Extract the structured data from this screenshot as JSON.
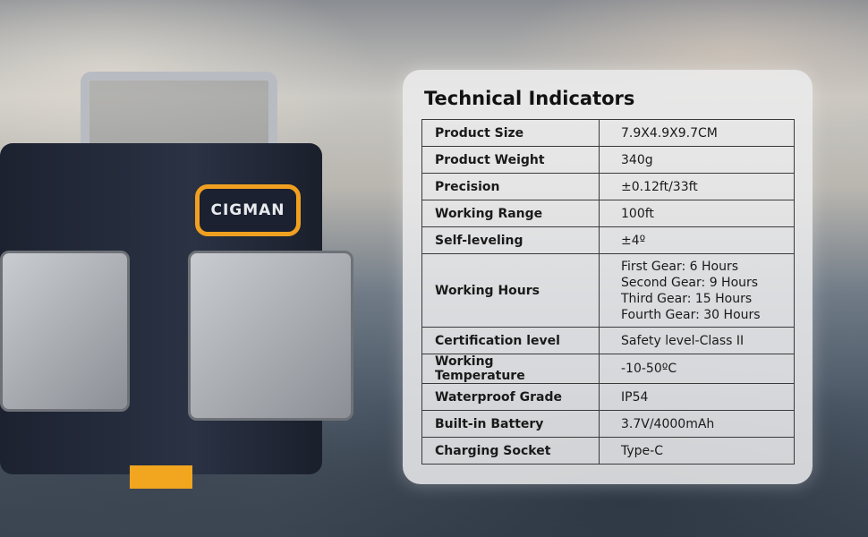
{
  "brand": {
    "logo_text": "CIGMAN",
    "accent": "#f2a51f"
  },
  "panel": {
    "title": "Technical Indicators"
  },
  "specs": [
    {
      "label": "Product Size",
      "value": "7.9X4.9X9.7CM"
    },
    {
      "label": "Product Weight",
      "value": "340g"
    },
    {
      "label": "Precision",
      "value": "±0.12ft/33ft"
    },
    {
      "label": "Working Range",
      "value": "100ft"
    },
    {
      "label": "Self-leveling",
      "value": "±4º"
    },
    {
      "label": "Working Hours",
      "lines": [
        "First Gear: 6 Hours",
        "Second Gear: 9 Hours",
        "Third Gear: 15 Hours",
        "Fourth Gear: 30 Hours"
      ]
    },
    {
      "label": "Certification level",
      "value": "Safety level-Class II"
    },
    {
      "label": "Working Temperature",
      "value": "-10-50ºC"
    },
    {
      "label": "Waterproof Grade",
      "value": "IP54"
    },
    {
      "label": "Built-in Battery",
      "value": "3.7V/4000mAh"
    },
    {
      "label": "Charging Socket",
      "value": "Type-C"
    }
  ]
}
